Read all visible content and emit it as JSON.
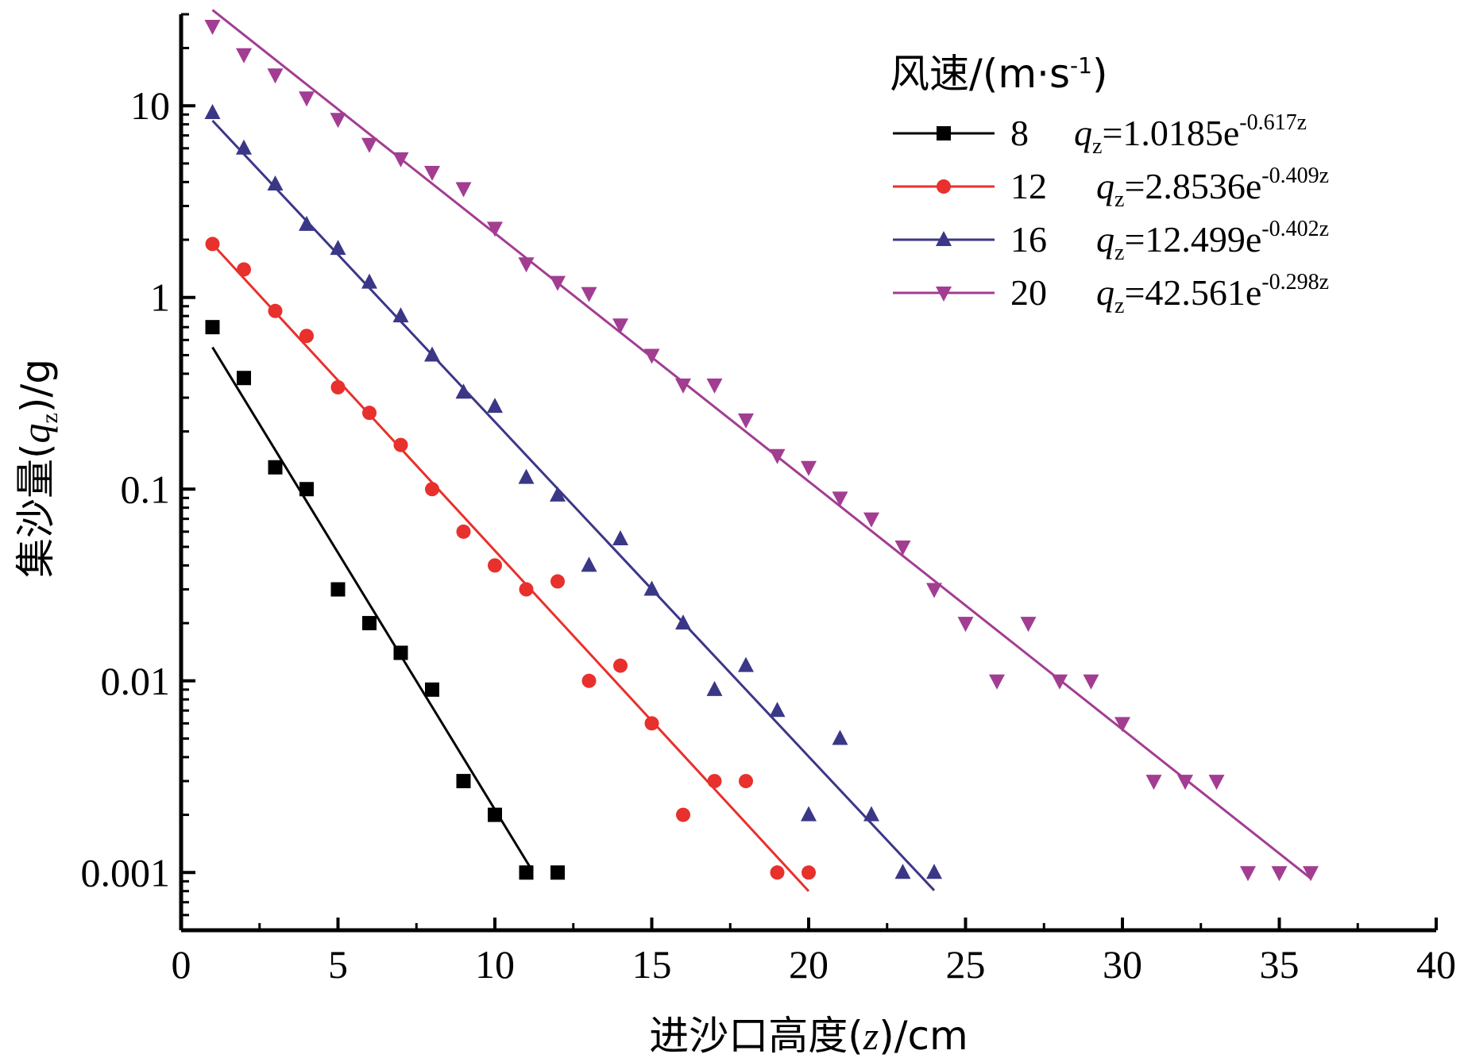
{
  "chart_data": {
    "type": "scatter",
    "xlabel": {
      "pre": "进沙口高度(",
      "var": "z",
      "post": ")/cm"
    },
    "ylabel": {
      "pre": "集沙量(",
      "var": "q",
      "sub": "z",
      "post": ")/g"
    },
    "xlim": [
      0,
      40
    ],
    "ylim": [
      0.0005,
      30
    ],
    "y_scale": "log",
    "x_ticks": [
      0,
      5,
      10,
      15,
      20,
      25,
      30,
      35,
      40
    ],
    "y_ticks": [
      0.001,
      0.01,
      0.1,
      1,
      10
    ],
    "y_tick_labels": [
      "0.001",
      "0.01",
      "0.1",
      "1",
      "10"
    ],
    "grid": false,
    "legend": {
      "title_pre": "风速/(m·s",
      "title_sup": "-1",
      "title_post": ")",
      "placement": "top-right"
    },
    "series": [
      {
        "name": "8",
        "color": "#000000",
        "marker": "square",
        "fit": {
          "a": 1.0185,
          "b": 0.617,
          "x_range": [
            1,
            11.2
          ],
          "coef": "1.0185",
          "exp": "-0.617z"
        },
        "points": [
          [
            1,
            0.7
          ],
          [
            2,
            0.38
          ],
          [
            3,
            0.13
          ],
          [
            4,
            0.1
          ],
          [
            5,
            0.03
          ],
          [
            6,
            0.02
          ],
          [
            7,
            0.014
          ],
          [
            8,
            0.009
          ],
          [
            9,
            0.003
          ],
          [
            10,
            0.002
          ],
          [
            11,
            0.001
          ],
          [
            12,
            0.001
          ]
        ]
      },
      {
        "name": "12",
        "color": "#e8302c",
        "marker": "circle",
        "fit": {
          "a": 2.8536,
          "b": 0.409,
          "x_range": [
            1,
            20
          ],
          "coef": "2.8536",
          "exp": "-0.409z"
        },
        "points": [
          [
            1,
            1.9
          ],
          [
            2,
            1.4
          ],
          [
            3,
            0.85
          ],
          [
            4,
            0.63
          ],
          [
            5,
            0.34
          ],
          [
            6,
            0.25
          ],
          [
            7,
            0.17
          ],
          [
            8,
            0.1
          ],
          [
            9,
            0.06
          ],
          [
            10,
            0.04
          ],
          [
            11,
            0.03
          ],
          [
            12,
            0.033
          ],
          [
            13,
            0.01
          ],
          [
            14,
            0.012
          ],
          [
            15,
            0.006
          ],
          [
            16,
            0.002
          ],
          [
            17,
            0.003
          ],
          [
            18,
            0.003
          ],
          [
            19,
            0.001
          ],
          [
            20,
            0.001
          ]
        ]
      },
      {
        "name": "16",
        "color": "#3b3787",
        "marker": "triangle-up",
        "fit": {
          "a": 12.499,
          "b": 0.402,
          "x_range": [
            1,
            24
          ],
          "coef": "12.499",
          "exp": "-0.402z"
        },
        "points": [
          [
            1,
            9.2
          ],
          [
            2,
            6.0
          ],
          [
            3,
            3.9
          ],
          [
            4,
            2.4
          ],
          [
            5,
            1.8
          ],
          [
            6,
            1.2
          ],
          [
            7,
            0.8
          ],
          [
            8,
            0.5
          ],
          [
            9,
            0.32
          ],
          [
            10,
            0.27
          ],
          [
            11,
            0.115
          ],
          [
            12,
            0.093
          ],
          [
            13,
            0.04
          ],
          [
            14,
            0.055
          ],
          [
            15,
            0.03
          ],
          [
            16,
            0.02
          ],
          [
            17,
            0.009
          ],
          [
            18,
            0.012
          ],
          [
            19,
            0.007
          ],
          [
            20,
            0.002
          ],
          [
            21,
            0.005
          ],
          [
            22,
            0.002
          ],
          [
            23,
            0.001
          ],
          [
            24,
            0.001
          ]
        ]
      },
      {
        "name": "20",
        "color": "#a23d92",
        "marker": "triangle-down",
        "fit": {
          "a": 42.561,
          "b": 0.298,
          "x_range": [
            1,
            36
          ],
          "coef": "42.561",
          "exp": "-0.298z"
        },
        "points": [
          [
            1,
            26
          ],
          [
            2,
            18.5
          ],
          [
            3,
            14.5
          ],
          [
            4,
            11
          ],
          [
            5,
            8.5
          ],
          [
            6,
            6.3
          ],
          [
            7,
            5.3
          ],
          [
            8,
            4.5
          ],
          [
            9,
            3.7
          ],
          [
            10,
            2.3
          ],
          [
            11,
            1.5
          ],
          [
            12,
            1.2
          ],
          [
            13,
            1.05
          ],
          [
            14,
            0.72
          ],
          [
            15,
            0.5
          ],
          [
            16,
            0.35
          ],
          [
            17,
            0.35
          ],
          [
            18,
            0.23
          ],
          [
            19,
            0.15
          ],
          [
            20,
            0.13
          ],
          [
            21,
            0.09
          ],
          [
            22,
            0.07
          ],
          [
            23,
            0.05
          ],
          [
            24,
            0.03
          ],
          [
            25,
            0.02
          ],
          [
            26,
            0.01
          ],
          [
            27,
            0.02
          ],
          [
            28,
            0.01
          ],
          [
            29,
            0.01
          ],
          [
            30,
            0.006
          ],
          [
            31,
            0.003
          ],
          [
            32,
            0.003
          ],
          [
            33,
            0.003
          ],
          [
            34,
            0.001
          ],
          [
            35,
            0.001
          ],
          [
            36,
            0.001
          ]
        ]
      }
    ]
  }
}
